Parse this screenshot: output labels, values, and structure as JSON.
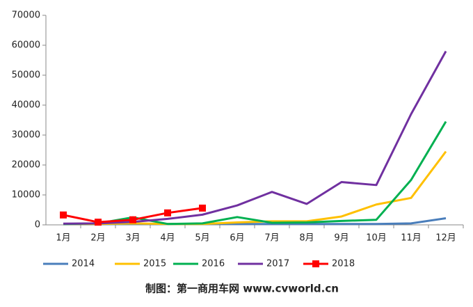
{
  "chart_data": {
    "type": "line",
    "footer": "制图：第一商用车网 www.cvworld.cn",
    "categories": [
      "1月",
      "2月",
      "3月",
      "4月",
      "5月",
      "6月",
      "7月",
      "8月",
      "9月",
      "10月",
      "11月",
      "12月"
    ],
    "series": [
      {
        "name": "2014",
        "color": "#4a7ebb",
        "values": [
          200,
          200,
          300,
          300,
          300,
          300,
          300,
          300,
          300,
          300,
          500,
          2200
        ]
      },
      {
        "name": "2015",
        "color": "#ffc000",
        "values": [
          300,
          300,
          500,
          300,
          300,
          800,
          1200,
          1200,
          2800,
          6800,
          9000,
          24500
        ]
      },
      {
        "name": "2016",
        "color": "#00b050",
        "values": [
          300,
          500,
          2500,
          300,
          500,
          2600,
          700,
          800,
          1300,
          1700,
          15000,
          34500
        ]
      },
      {
        "name": "2017",
        "color": "#7030a0",
        "values": [
          400,
          500,
          1000,
          2000,
          3400,
          6500,
          11000,
          7000,
          14300,
          13300,
          37000,
          58000
        ]
      },
      {
        "name": "2018",
        "color": "#ff0000",
        "marker": "square",
        "values": [
          3300,
          900,
          1700,
          4000,
          5600,
          null,
          null,
          null,
          null,
          null,
          null,
          null
        ]
      }
    ],
    "ylim": [
      0,
      70000
    ],
    "yticks": [
      0,
      10000,
      20000,
      30000,
      40000,
      50000,
      60000,
      70000
    ],
    "legend": "bottom"
  }
}
